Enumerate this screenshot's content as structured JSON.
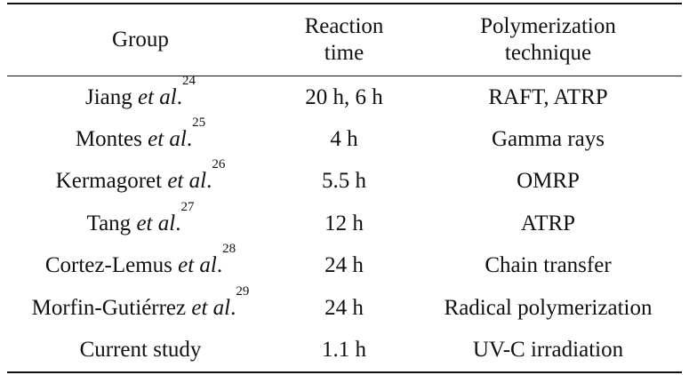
{
  "table": {
    "headers": {
      "group": "Group",
      "reaction_time": [
        "Reaction",
        "time"
      ],
      "polymerization": [
        "Polymerization",
        "technique"
      ]
    },
    "etal_text": "et al",
    "rows": [
      {
        "author": "Jiang",
        "etal": true,
        "ref": "24",
        "time": "20 h, 6 h",
        "technique": "RAFT, ATRP"
      },
      {
        "author": "Montes",
        "etal": true,
        "ref": "25",
        "time": "4 h",
        "technique": "Gamma rays"
      },
      {
        "author": "Kermagoret",
        "etal": true,
        "ref": "26",
        "time": "5.5 h",
        "technique": "OMRP"
      },
      {
        "author": "Tang",
        "etal": true,
        "ref": "27",
        "time": "12 h",
        "technique": "ATRP"
      },
      {
        "author": "Cortez-Lemus",
        "etal": true,
        "ref": "28",
        "time": "24 h",
        "technique": "Chain transfer"
      },
      {
        "author": "Morfin-Gutiérrez",
        "etal": true,
        "ref": "29",
        "time": "24 h",
        "technique": "Radical polymerization"
      },
      {
        "author": "Current study",
        "etal": false,
        "ref": "",
        "time": "1.1 h",
        "technique": "UV-C irradiation"
      }
    ]
  }
}
